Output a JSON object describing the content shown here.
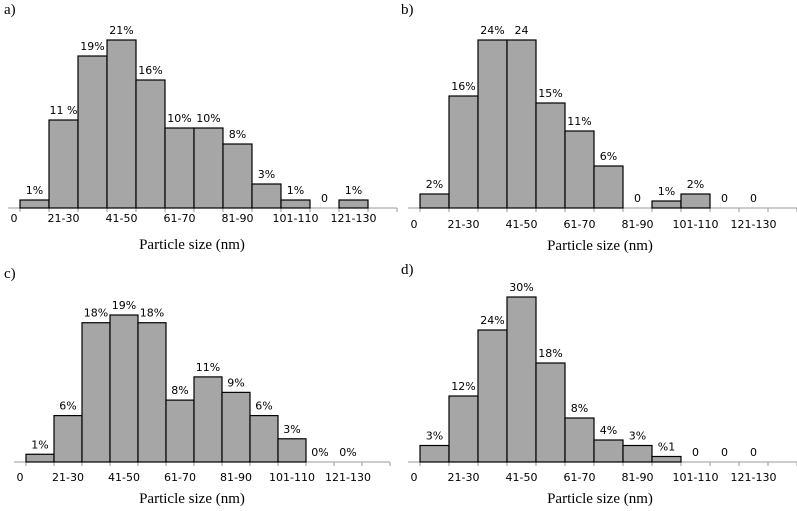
{
  "chart_data": [
    {
      "type": "bar",
      "panel": "a)",
      "xlabel": "Particle size (nm)",
      "ylabel": "",
      "tick_labels": [
        "0",
        "21-30",
        "41-50",
        "61-70",
        "81-90",
        "101-110",
        "121-130"
      ],
      "values": [
        1,
        11,
        19,
        21,
        16,
        10,
        10,
        8,
        3,
        1,
        0,
        1
      ],
      "data_labels": [
        "1%",
        "11 %",
        "19%",
        "21%",
        "16%",
        "10%",
        "10%",
        "8%",
        "3%",
        "1%",
        "0",
        "1%"
      ],
      "ylim": [
        0,
        22
      ]
    },
    {
      "type": "bar",
      "panel": "b)",
      "xlabel": "Particle size (nm)",
      "ylabel": "",
      "tick_labels": [
        "0",
        "21-30",
        "41-50",
        "61-70",
        "81-90",
        "101-110",
        "121-130"
      ],
      "values": [
        2,
        16,
        24,
        24,
        15,
        11,
        6,
        0,
        1,
        2,
        0,
        0
      ],
      "data_labels": [
        "2%",
        "16%",
        "24%",
        "24",
        "15%",
        "11%",
        "6%",
        "0",
        "1%",
        "2%",
        "0",
        "0"
      ],
      "ylim": [
        0,
        25
      ]
    },
    {
      "type": "bar",
      "panel": "c)",
      "xlabel": "Particle size (nm)",
      "ylabel": "",
      "tick_labels": [
        "0",
        "21-30",
        "41-50",
        "61-70",
        "81-90",
        "101-110",
        "121-130"
      ],
      "values": [
        1,
        6,
        18,
        19,
        18,
        8,
        11,
        9,
        6,
        3,
        0,
        0
      ],
      "data_labels": [
        "1%",
        "6%",
        "18%",
        "19%",
        "18%",
        "8%",
        "11%",
        "9%",
        "6%",
        "3%",
        "0%",
        "0%"
      ],
      "ylim": [
        0,
        20
      ]
    },
    {
      "type": "bar",
      "panel": "d)",
      "xlabel": "Particle size (nm)",
      "ylabel": "",
      "tick_labels": [
        "0",
        "21-30",
        "41-50",
        "61-70",
        "81-90",
        "101-110",
        "121-130"
      ],
      "values": [
        3,
        12,
        24,
        30,
        18,
        8,
        4,
        3,
        1,
        0,
        0,
        0
      ],
      "data_labels": [
        "3%",
        "12%",
        "24%",
        "30%",
        "18%",
        "8%",
        "4%",
        "3%",
        "%1",
        "0",
        "0",
        "0"
      ],
      "ylim": [
        0,
        31
      ]
    }
  ]
}
